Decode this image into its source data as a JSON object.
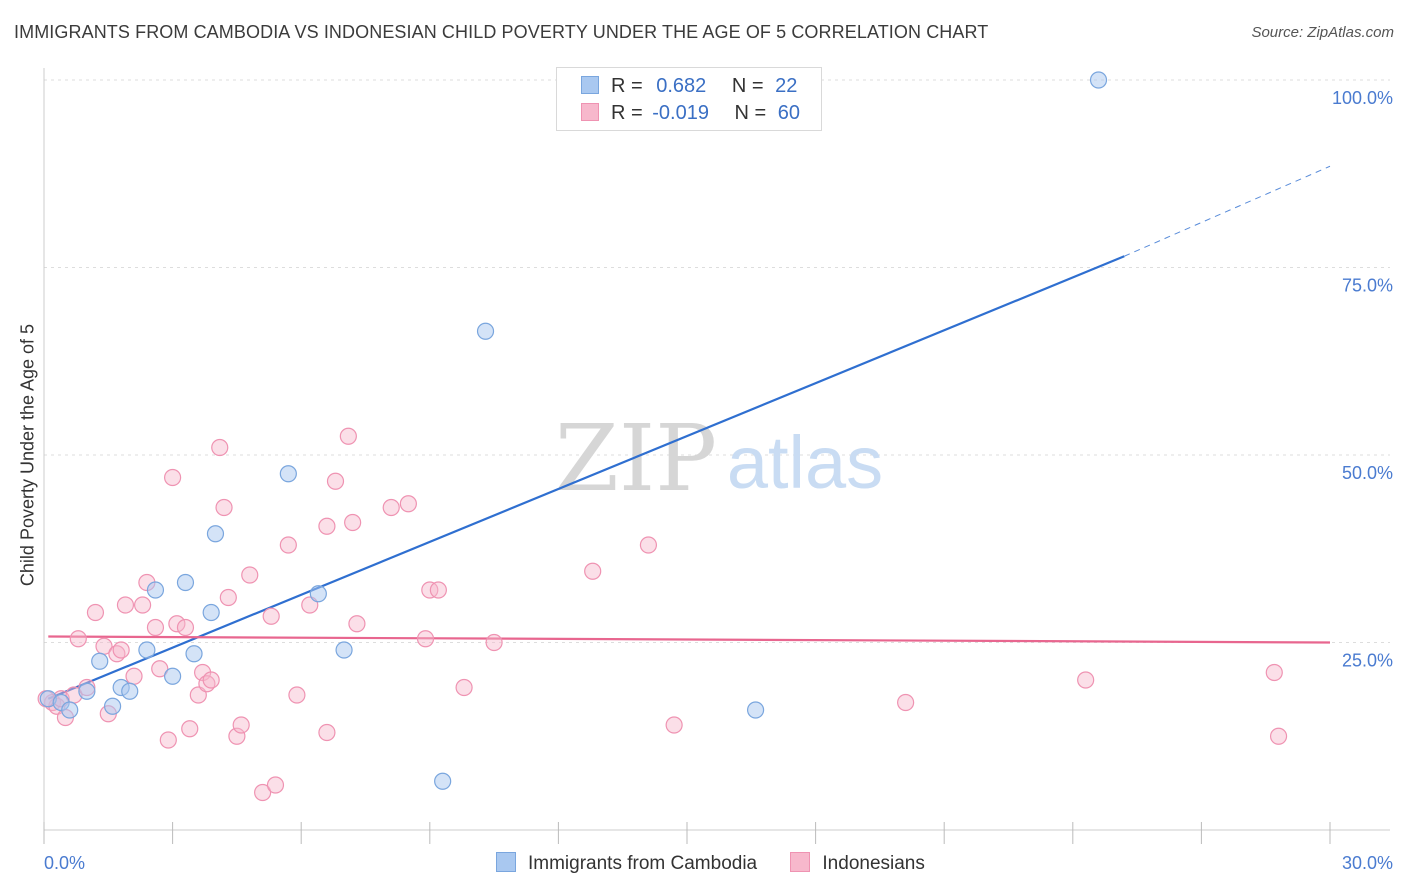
{
  "header": {
    "title": "IMMIGRANTS FROM CAMBODIA VS INDONESIAN CHILD POVERTY UNDER THE AGE OF 5 CORRELATION CHART",
    "source": "Source: ZipAtlas.com"
  },
  "watermark": {
    "zip": "ZIP",
    "atlas": "atlas"
  },
  "legend": {
    "rows": [
      {
        "r_label": "R =",
        "r_value": "0.682",
        "n_label": "N =",
        "n_value": "22"
      },
      {
        "r_label": "R =",
        "r_value": "-0.019",
        "n_label": "N =",
        "n_value": "60"
      }
    ]
  },
  "colors": {
    "cambodia_fill": "#a9c8f0",
    "cambodia_stroke": "#7aa6de",
    "cambodia_line": "#2f6fd0",
    "indonesian_fill": "#f7b8cc",
    "indonesian_stroke": "#ef93b2",
    "indonesian_line": "#e8668f",
    "axis_text": "#4a7bd0",
    "grid": "#dddddd"
  },
  "chart_data": {
    "type": "scatter",
    "title": "IMMIGRANTS FROM CAMBODIA VS INDONESIAN CHILD POVERTY UNDER THE AGE OF 5 CORRELATION CHART",
    "xlabel": "",
    "ylabel": "Child Poverty Under the Age of 5",
    "xlim": [
      0,
      30
    ],
    "ylim": [
      0,
      100
    ],
    "x_tick_labels": [
      "0.0%",
      "30.0%"
    ],
    "y_tick_labels": [
      "25.0%",
      "50.0%",
      "75.0%",
      "100.0%"
    ],
    "y_tick_values": [
      25,
      50,
      75,
      100
    ],
    "series": [
      {
        "name": "Immigrants from Cambodia",
        "points": [
          [
            0.1,
            17.5
          ],
          [
            0.4,
            17.0
          ],
          [
            0.6,
            16.0
          ],
          [
            1.0,
            18.5
          ],
          [
            1.3,
            22.5
          ],
          [
            1.6,
            16.5
          ],
          [
            1.8,
            19.0
          ],
          [
            2.0,
            18.5
          ],
          [
            2.4,
            24.0
          ],
          [
            2.6,
            32.0
          ],
          [
            3.0,
            20.5
          ],
          [
            3.3,
            33.0
          ],
          [
            3.5,
            23.5
          ],
          [
            3.9,
            29.0
          ],
          [
            4.0,
            39.5
          ],
          [
            5.7,
            47.5
          ],
          [
            6.4,
            31.5
          ],
          [
            7.0,
            24.0
          ],
          [
            9.3,
            6.5
          ],
          [
            10.3,
            66.5
          ],
          [
            16.6,
            16.0
          ],
          [
            24.6,
            100.0
          ]
        ],
        "trend": {
          "x0": 0.1,
          "y0": 17.5,
          "x1": 25.2,
          "y1": 76.5,
          "dash_x1": 30.0,
          "dash_y1": 88.5
        }
      },
      {
        "name": "Indonesians",
        "points": [
          [
            0.2,
            17.0
          ],
          [
            0.3,
            16.5
          ],
          [
            0.4,
            17.5
          ],
          [
            0.5,
            15.0
          ],
          [
            0.7,
            18.0
          ],
          [
            0.8,
            25.5
          ],
          [
            1.0,
            19.0
          ],
          [
            1.2,
            29.0
          ],
          [
            1.4,
            24.5
          ],
          [
            1.5,
            15.5
          ],
          [
            1.7,
            23.5
          ],
          [
            1.8,
            24.0
          ],
          [
            1.9,
            30.0
          ],
          [
            2.1,
            20.5
          ],
          [
            2.3,
            30.0
          ],
          [
            2.4,
            33.0
          ],
          [
            2.6,
            27.0
          ],
          [
            2.7,
            21.5
          ],
          [
            2.9,
            12.0
          ],
          [
            3.0,
            47.0
          ],
          [
            3.1,
            27.5
          ],
          [
            3.3,
            27.0
          ],
          [
            3.4,
            13.5
          ],
          [
            3.6,
            18.0
          ],
          [
            3.7,
            21.0
          ],
          [
            3.8,
            19.5
          ],
          [
            3.9,
            20.0
          ],
          [
            4.1,
            51.0
          ],
          [
            4.2,
            43.0
          ],
          [
            4.3,
            31.0
          ],
          [
            4.5,
            12.5
          ],
          [
            4.6,
            14.0
          ],
          [
            4.8,
            34.0
          ],
          [
            5.1,
            5.0
          ],
          [
            5.3,
            28.5
          ],
          [
            5.4,
            6.0
          ],
          [
            5.7,
            38.0
          ],
          [
            5.9,
            18.0
          ],
          [
            6.2,
            30.0
          ],
          [
            6.6,
            40.5
          ],
          [
            6.6,
            13.0
          ],
          [
            6.8,
            46.5
          ],
          [
            7.1,
            52.5
          ],
          [
            7.2,
            41.0
          ],
          [
            7.3,
            27.5
          ],
          [
            8.1,
            43.0
          ],
          [
            8.5,
            43.5
          ],
          [
            8.9,
            25.5
          ],
          [
            9.0,
            32.0
          ],
          [
            9.2,
            32.0
          ],
          [
            9.8,
            19.0
          ],
          [
            10.5,
            25.0
          ],
          [
            12.8,
            34.5
          ],
          [
            14.1,
            38.0
          ],
          [
            14.7,
            14.0
          ],
          [
            20.1,
            17.0
          ],
          [
            24.3,
            20.0
          ],
          [
            28.7,
            21.0
          ],
          [
            28.8,
            12.5
          ],
          [
            0.05,
            17.5
          ]
        ],
        "trend": {
          "x0": 0.1,
          "y0": 25.8,
          "x1": 30.0,
          "y1": 25.0
        }
      }
    ]
  }
}
